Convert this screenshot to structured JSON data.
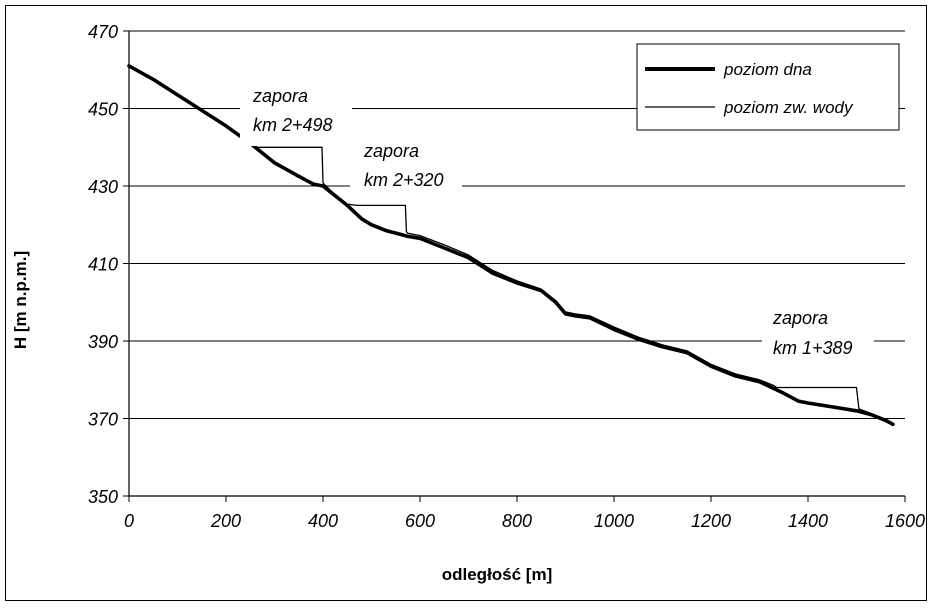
{
  "chart_data": {
    "type": "line",
    "xlabel": "odległość [m]",
    "ylabel": "H [m n.p.m.]",
    "xlim": [
      0,
      1600
    ],
    "ylim": [
      350,
      470
    ],
    "xticks": [
      0,
      200,
      400,
      600,
      800,
      1000,
      1200,
      1400,
      1600
    ],
    "yticks": [
      350,
      370,
      390,
      410,
      430,
      450,
      470
    ],
    "x_tick_labels": [
      "0",
      "200",
      "400",
      "600",
      "800",
      "1000",
      "1200",
      "1400",
      "1600"
    ],
    "y_tick_labels": [
      "350",
      "370",
      "390",
      "410",
      "430",
      "450",
      "470"
    ],
    "grid": "horizontal",
    "legend_position": "top-right",
    "series": [
      {
        "name": "poziom dna",
        "style": "thick",
        "color": "#000000",
        "x": [
          0,
          50,
          100,
          150,
          200,
          250,
          300,
          350,
          380,
          400,
          420,
          450,
          480,
          500,
          530,
          560,
          575,
          600,
          650,
          700,
          750,
          800,
          850,
          880,
          900,
          920,
          950,
          1000,
          1050,
          1100,
          1150,
          1200,
          1250,
          1300,
          1350,
          1380,
          1400,
          1450,
          1500,
          1530,
          1560,
          1575
        ],
        "y": [
          461,
          457.5,
          453.5,
          449.5,
          445.5,
          441,
          436,
          432.5,
          430.5,
          430,
          428,
          425,
          421.5,
          420,
          418.5,
          417.5,
          417,
          416.5,
          414,
          411.5,
          407.5,
          405,
          403,
          400,
          397,
          396.5,
          396,
          393,
          390.5,
          388.5,
          387,
          383.5,
          381,
          379.5,
          376.5,
          374.5,
          374,
          373,
          372,
          371,
          369.5,
          368.5
        ]
      },
      {
        "name": "poziom zw. wody",
        "style": "thin",
        "color": "#000000",
        "x": [
          0,
          50,
          100,
          150,
          200,
          250,
          260,
          398,
          400,
          420,
          450,
          470,
          480,
          570,
          572,
          575,
          600,
          650,
          700,
          750,
          800,
          850,
          880,
          900,
          920,
          950,
          1000,
          1050,
          1100,
          1150,
          1200,
          1250,
          1300,
          1330,
          1335,
          1500,
          1505,
          1530,
          1560,
          1575
        ],
        "y": [
          461.2,
          457.7,
          453.7,
          449.7,
          445.7,
          441.3,
          440,
          440,
          430.8,
          428.3,
          425.3,
          425,
          425,
          425,
          418.2,
          417.8,
          417.2,
          414.8,
          412.2,
          408.2,
          405.5,
          403.4,
          400.4,
          397.5,
          397,
          396.5,
          393.6,
          391,
          389,
          387.5,
          384,
          381.5,
          380,
          378.5,
          378,
          378,
          372.5,
          371.3,
          369.8,
          368.8
        ]
      }
    ],
    "annotations": [
      {
        "lines": [
          "zapora",
          "km 2+498"
        ]
      },
      {
        "lines": [
          "zapora",
          "km 2+320"
        ]
      },
      {
        "lines": [
          "zapora",
          "km 1+389"
        ]
      }
    ]
  }
}
